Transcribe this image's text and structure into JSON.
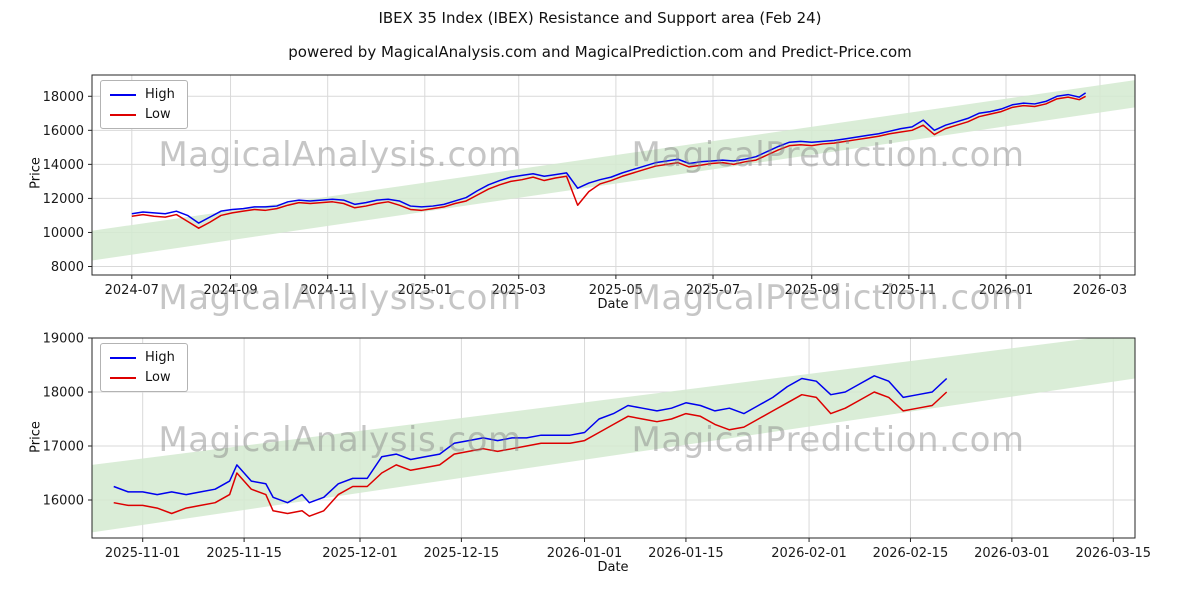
{
  "page": {
    "title": "IBEX 35 Index (IBEX) Resistance and Support area (Feb 24)",
    "subtitle": "powered by MagicalAnalysis.com and MagicalPrediction.com and Predict-Price.com"
  },
  "watermarks": {
    "analysis": "MagicalAnalysis.com",
    "prediction": "MagicalPrediction.com"
  },
  "chart_data": [
    {
      "type": "line",
      "title": "",
      "xlabel": "Date",
      "ylabel": "Price",
      "legend": [
        "High",
        "Low"
      ],
      "legend_position": "upper-left",
      "grid": true,
      "colors": {
        "high": "#0000ee",
        "low": "#dd0000",
        "band": "#d3ead0"
      },
      "xlim": [
        "2024-06-06",
        "2026-03-23"
      ],
      "ylim": [
        7500,
        19250
      ],
      "yticks": [
        8000,
        10000,
        12000,
        14000,
        16000,
        18000
      ],
      "xticks": [
        {
          "date": "2024-07-01",
          "label": "2024-07"
        },
        {
          "date": "2024-09-01",
          "label": "2024-09"
        },
        {
          "date": "2024-11-01",
          "label": "2024-11"
        },
        {
          "date": "2025-01-01",
          "label": "2025-01"
        },
        {
          "date": "2025-03-01",
          "label": "2025-03"
        },
        {
          "date": "2025-05-01",
          "label": "2025-05"
        },
        {
          "date": "2025-07-01",
          "label": "2025-07"
        },
        {
          "date": "2025-09-01",
          "label": "2025-09"
        },
        {
          "date": "2025-11-01",
          "label": "2025-11"
        },
        {
          "date": "2026-01-01",
          "label": "2026-01"
        },
        {
          "date": "2026-03-01",
          "label": "2026-03"
        }
      ],
      "band": {
        "x": [
          "2024-06-06",
          "2026-03-23"
        ],
        "lower": [
          8350,
          17350
        ],
        "upper": [
          10100,
          18950
        ]
      },
      "dates": [
        "2024-07-01",
        "2024-07-08",
        "2024-07-15",
        "2024-07-22",
        "2024-07-29",
        "2024-08-05",
        "2024-08-12",
        "2024-08-19",
        "2024-08-26",
        "2024-09-02",
        "2024-09-09",
        "2024-09-16",
        "2024-09-23",
        "2024-09-30",
        "2024-10-07",
        "2024-10-14",
        "2024-10-21",
        "2024-10-28",
        "2024-11-04",
        "2024-11-11",
        "2024-11-18",
        "2024-11-25",
        "2024-12-02",
        "2024-12-09",
        "2024-12-16",
        "2024-12-23",
        "2024-12-30",
        "2025-01-06",
        "2025-01-13",
        "2025-01-20",
        "2025-01-27",
        "2025-02-03",
        "2025-02-10",
        "2025-02-17",
        "2025-02-24",
        "2025-03-03",
        "2025-03-10",
        "2025-03-17",
        "2025-03-24",
        "2025-03-31",
        "2025-04-07",
        "2025-04-14",
        "2025-04-21",
        "2025-04-28",
        "2025-05-05",
        "2025-05-12",
        "2025-05-19",
        "2025-05-26",
        "2025-06-02",
        "2025-06-09",
        "2025-06-16",
        "2025-06-23",
        "2025-06-30",
        "2025-07-07",
        "2025-07-14",
        "2025-07-21",
        "2025-07-28",
        "2025-08-04",
        "2025-08-11",
        "2025-08-18",
        "2025-08-25",
        "2025-09-01",
        "2025-09-08",
        "2025-09-15",
        "2025-09-22",
        "2025-09-29",
        "2025-10-06",
        "2025-10-13",
        "2025-10-20",
        "2025-10-27",
        "2025-11-03",
        "2025-11-10",
        "2025-11-17",
        "2025-11-24",
        "2025-12-01",
        "2025-12-08",
        "2025-12-15",
        "2025-12-22",
        "2025-12-29",
        "2026-01-05",
        "2026-01-12",
        "2026-01-19",
        "2026-01-26",
        "2026-02-02",
        "2026-02-09",
        "2026-02-16",
        "2026-02-20"
      ],
      "high": [
        11100,
        11200,
        11150,
        11100,
        11250,
        11000,
        10550,
        10900,
        11250,
        11350,
        11400,
        11500,
        11500,
        11550,
        11800,
        11900,
        11850,
        11900,
        11950,
        11900,
        11650,
        11750,
        11900,
        11950,
        11850,
        11550,
        11500,
        11550,
        11650,
        11850,
        12050,
        12450,
        12800,
        13050,
        13250,
        13350,
        13450,
        13300,
        13400,
        13500,
        12600,
        12900,
        13100,
        13250,
        13500,
        13700,
        13900,
        14100,
        14200,
        14300,
        14050,
        14150,
        14200,
        14250,
        14200,
        14300,
        14450,
        14750,
        15050,
        15300,
        15350,
        15300,
        15350,
        15400,
        15500,
        15600,
        15700,
        15800,
        15950,
        16100,
        16200,
        16600,
        16000,
        16300,
        16500,
        16700,
        17000,
        17100,
        17250,
        17500,
        17600,
        17550,
        17700,
        18000,
        18100,
        17950,
        18200
      ],
      "low": [
        10950,
        11050,
        10950,
        10900,
        11050,
        10650,
        10250,
        10600,
        11000,
        11150,
        11250,
        11350,
        11300,
        11400,
        11600,
        11750,
        11700,
        11750,
        11800,
        11700,
        11450,
        11550,
        11700,
        11800,
        11600,
        11350,
        11300,
        11400,
        11500,
        11700,
        11850,
        12200,
        12550,
        12800,
        13000,
        13100,
        13250,
        13050,
        13200,
        13300,
        11600,
        12400,
        12850,
        13050,
        13300,
        13500,
        13700,
        13900,
        14000,
        14100,
        13850,
        13950,
        14050,
        14100,
        14000,
        14150,
        14250,
        14550,
        14850,
        15100,
        15150,
        15100,
        15200,
        15250,
        15350,
        15450,
        15550,
        15650,
        15800,
        15900,
        16000,
        16300,
        15750,
        16100,
        16300,
        16500,
        16800,
        16950,
        17100,
        17350,
        17450,
        17400,
        17550,
        17850,
        17950,
        17800,
        18000
      ]
    },
    {
      "type": "line",
      "title": "",
      "xlabel": "Date",
      "ylabel": "Price",
      "legend": [
        "High",
        "Low"
      ],
      "legend_position": "upper-left",
      "grid": true,
      "colors": {
        "high": "#0000ee",
        "low": "#dd0000",
        "band": "#d3ead0"
      },
      "xlim": [
        "2025-10-25",
        "2026-03-18"
      ],
      "ylim": [
        15296,
        19000
      ],
      "yticks": [
        16000,
        17000,
        18000,
        19000
      ],
      "xticks": [
        {
          "date": "2025-11-01",
          "label": "2025-11-01"
        },
        {
          "date": "2025-11-15",
          "label": "2025-11-15"
        },
        {
          "date": "2025-12-01",
          "label": "2025-12-01"
        },
        {
          "date": "2025-12-15",
          "label": "2025-12-15"
        },
        {
          "date": "2026-01-01",
          "label": "2026-01-01"
        },
        {
          "date": "2026-01-15",
          "label": "2026-01-15"
        },
        {
          "date": "2026-02-01",
          "label": "2026-02-01"
        },
        {
          "date": "2026-02-15",
          "label": "2026-02-15"
        },
        {
          "date": "2026-03-01",
          "label": "2026-03-01"
        },
        {
          "date": "2026-03-15",
          "label": "2026-03-15"
        }
      ],
      "band": {
        "x": [
          "2025-10-25",
          "2026-03-18"
        ],
        "lower": [
          15400,
          18250
        ],
        "upper": [
          16650,
          19100
        ]
      },
      "dates": [
        "2025-10-28",
        "2025-10-30",
        "2025-11-01",
        "2025-11-03",
        "2025-11-05",
        "2025-11-07",
        "2025-11-09",
        "2025-11-11",
        "2025-11-13",
        "2025-11-14",
        "2025-11-16",
        "2025-11-18",
        "2025-11-19",
        "2025-11-21",
        "2025-11-23",
        "2025-11-24",
        "2025-11-26",
        "2025-11-28",
        "2025-11-30",
        "2025-12-02",
        "2025-12-04",
        "2025-12-06",
        "2025-12-08",
        "2025-12-10",
        "2025-12-12",
        "2025-12-14",
        "2025-12-16",
        "2025-12-18",
        "2025-12-20",
        "2025-12-22",
        "2025-12-24",
        "2025-12-26",
        "2025-12-28",
        "2025-12-30",
        "2026-01-01",
        "2026-01-03",
        "2026-01-05",
        "2026-01-07",
        "2026-01-09",
        "2026-01-11",
        "2026-01-13",
        "2026-01-15",
        "2026-01-17",
        "2026-01-19",
        "2026-01-21",
        "2026-01-23",
        "2026-01-25",
        "2026-01-27",
        "2026-01-29",
        "2026-01-31",
        "2026-02-02",
        "2026-02-04",
        "2026-02-06",
        "2026-02-08",
        "2026-02-10",
        "2026-02-12",
        "2026-02-14",
        "2026-02-16",
        "2026-02-18",
        "2026-02-20"
      ],
      "high": [
        16250,
        16150,
        16150,
        16100,
        16150,
        16100,
        16150,
        16200,
        16350,
        16650,
        16350,
        16300,
        16050,
        15950,
        16100,
        15950,
        16050,
        16300,
        16400,
        16400,
        16800,
        16850,
        16750,
        16800,
        16850,
        17050,
        17100,
        17150,
        17100,
        17150,
        17150,
        17200,
        17200,
        17200,
        17250,
        17500,
        17600,
        17750,
        17700,
        17650,
        17700,
        17800,
        17750,
        17650,
        17700,
        17600,
        17750,
        17900,
        18100,
        18250,
        18200,
        17950,
        18000,
        18150,
        18300,
        18200,
        17900,
        17950,
        18000,
        18250
      ],
      "low": [
        15950,
        15900,
        15900,
        15850,
        15750,
        15850,
        15900,
        15950,
        16100,
        16500,
        16200,
        16100,
        15800,
        15750,
        15800,
        15700,
        15800,
        16100,
        16250,
        16250,
        16500,
        16650,
        16550,
        16600,
        16650,
        16850,
        16900,
        16950,
        16900,
        16950,
        17000,
        17050,
        17050,
        17050,
        17100,
        17250,
        17400,
        17550,
        17500,
        17450,
        17500,
        17600,
        17550,
        17400,
        17300,
        17350,
        17500,
        17650,
        17800,
        17950,
        17900,
        17600,
        17700,
        17850,
        18000,
        17900,
        17650,
        17700,
        17750,
        18000
      ]
    }
  ]
}
